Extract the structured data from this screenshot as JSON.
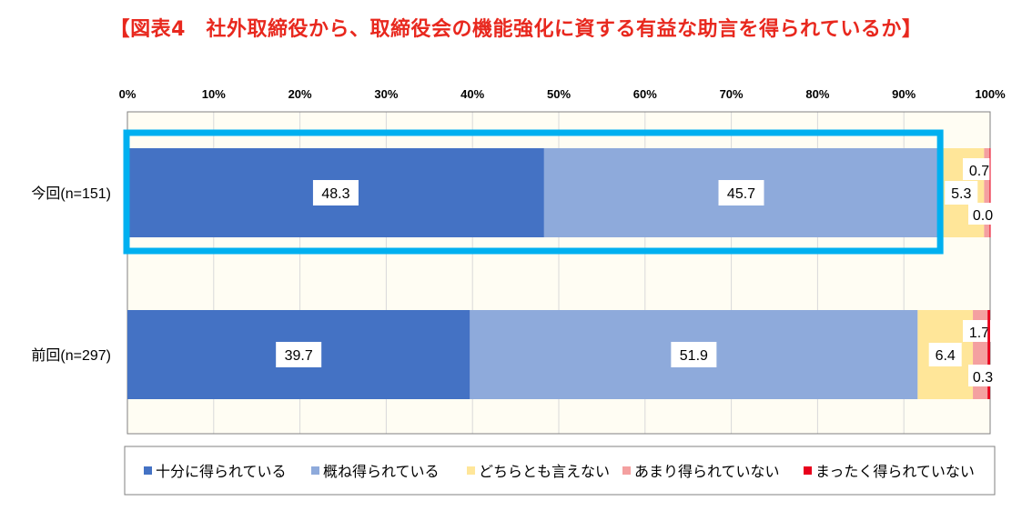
{
  "title": "【図表4　社外取締役から、取締役会の機能強化に資する有益な助言を得られているか】",
  "colors": {
    "series": [
      "#4472c4",
      "#8eaadb",
      "#ffe699",
      "#f4a0a0",
      "#e8001c"
    ],
    "highlight": "#00b0f0",
    "plot_bg": "#fffdf3",
    "grid": "#d9d9d9",
    "title": "#e8281e"
  },
  "chart_data": {
    "type": "bar",
    "orientation": "horizontal",
    "stacked": true,
    "categories": [
      "今回(n=151)",
      "前回(n=297)"
    ],
    "series": [
      {
        "name": "十分に得られている",
        "values": [
          48.3,
          39.7
        ]
      },
      {
        "name": "概ね得られている",
        "values": [
          45.7,
          51.9
        ]
      },
      {
        "name": "どちらとも言えない",
        "values": [
          5.3,
          6.4
        ]
      },
      {
        "name": "あまり得られていない",
        "values": [
          0.7,
          1.7
        ]
      },
      {
        "name": "まったく得られていない",
        "values": [
          0.0,
          0.3
        ]
      }
    ],
    "x_ticks": [
      "0%",
      "10%",
      "20%",
      "30%",
      "40%",
      "50%",
      "60%",
      "70%",
      "80%",
      "90%",
      "100%"
    ],
    "xlim": [
      0,
      100
    ],
    "grid": true,
    "legend_position": "bottom",
    "highlight": {
      "category": "今回(n=151)",
      "series": [
        "十分に得られている",
        "概ね得られている"
      ]
    }
  }
}
